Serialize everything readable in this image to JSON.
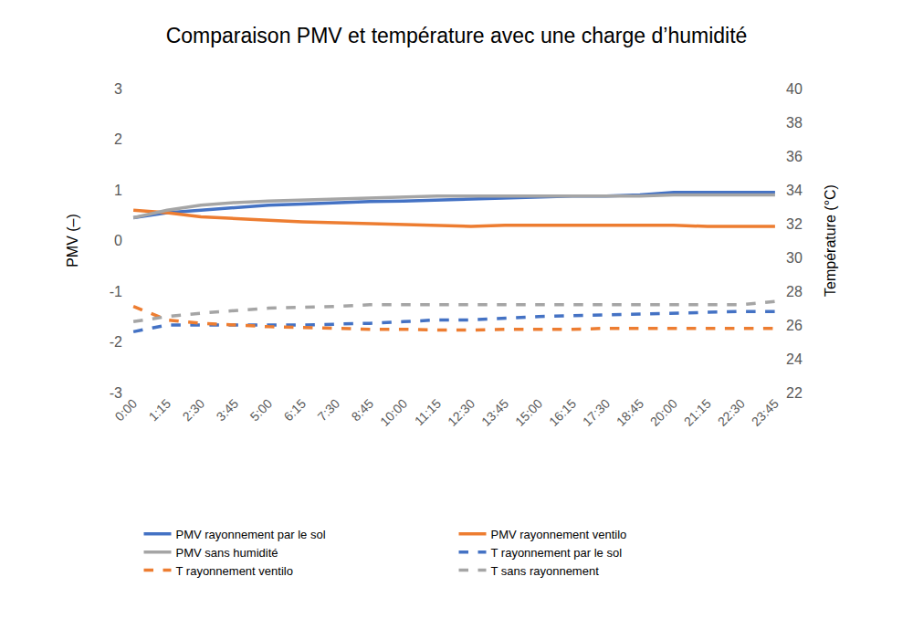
{
  "chart_data": {
    "type": "line",
    "title": "Comparaison PMV et température avec une charge d’humidité",
    "y_label": "PMV (–)",
    "y2_label": "Température (°C)",
    "categories": [
      "0:00",
      "1:15",
      "2:30",
      "3:45",
      "5:00",
      "6:15",
      "7:30",
      "8:45",
      "10:00",
      "11:15",
      "12:30",
      "13:45",
      "15:00",
      "16:15",
      "17:30",
      "18:45",
      "20:00",
      "21:15",
      "22:30",
      "23:45"
    ],
    "ylim": [
      -3,
      3
    ],
    "yticks": [
      -3,
      -2,
      -1,
      0,
      1,
      2,
      3
    ],
    "y2lim": [
      22,
      40
    ],
    "y2ticks": [
      22,
      24,
      26,
      28,
      30,
      32,
      34,
      36,
      38,
      40
    ],
    "grid": false,
    "legend": "bottom",
    "series": [
      {
        "name": "PMV rayonnement par le sol",
        "color": "#4472c4",
        "line_style": "solid",
        "values": [
          0.45,
          0.55,
          0.6,
          0.65,
          0.7,
          0.72,
          0.75,
          0.77,
          0.78,
          0.8,
          0.82,
          0.85,
          0.87,
          0.88,
          0.88,
          0.9,
          0.95,
          0.95,
          0.95,
          0.95
        ]
      },
      {
        "name": "PMV rayonnement ventilo",
        "color": "#ed7d31",
        "line_style": "solid",
        "values": [
          0.6,
          0.55,
          0.47,
          0.43,
          0.4,
          0.37,
          0.35,
          0.33,
          0.32,
          0.3,
          0.28,
          0.3,
          0.3,
          0.3,
          0.3,
          0.3,
          0.3,
          0.28,
          0.28,
          0.28
        ]
      },
      {
        "name": "PMV sans humidité",
        "color": "#a5a5a5",
        "line_style": "solid",
        "values": [
          0.45,
          0.6,
          0.7,
          0.75,
          0.78,
          0.8,
          0.83,
          0.85,
          0.86,
          0.88,
          0.88,
          0.88,
          0.88,
          0.88,
          0.88,
          0.88,
          0.9,
          0.9,
          0.9,
          0.9
        ]
      },
      {
        "name": "T rayonnement par le sol",
        "color": "#4472c4",
        "line_style": "dashed",
        "axis": "y2",
        "values": [
          25.6,
          26.0,
          26.0,
          26.0,
          26.0,
          26.0,
          26.05,
          26.1,
          26.2,
          26.3,
          26.3,
          26.4,
          26.5,
          26.55,
          26.6,
          26.65,
          26.7,
          26.75,
          26.8,
          26.8
        ]
      },
      {
        "name": "T rayonnement ventilo",
        "color": "#ed7d31",
        "line_style": "dashed",
        "axis": "y2",
        "values": [
          27.1,
          26.3,
          26.1,
          26.0,
          25.9,
          25.85,
          25.8,
          25.75,
          25.75,
          25.7,
          25.7,
          25.75,
          25.75,
          25.75,
          25.8,
          25.8,
          25.8,
          25.8,
          25.8,
          25.8
        ]
      },
      {
        "name": "T sans rayonnement",
        "color": "#a5a5a5",
        "line_style": "dashed",
        "axis": "y2",
        "values": [
          26.2,
          26.5,
          26.7,
          26.85,
          27.0,
          27.05,
          27.1,
          27.2,
          27.2,
          27.2,
          27.2,
          27.2,
          27.2,
          27.2,
          27.2,
          27.2,
          27.2,
          27.2,
          27.2,
          27.4
        ]
      }
    ]
  }
}
